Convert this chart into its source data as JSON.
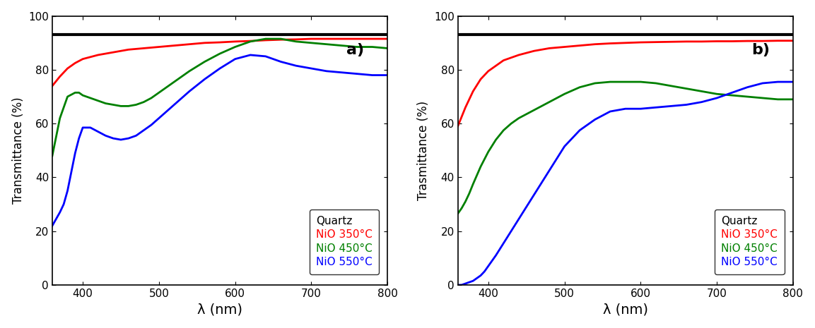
{
  "xlim": [
    360,
    800
  ],
  "ylim": [
    0,
    100
  ],
  "xticks": [
    400,
    500,
    600,
    700,
    800
  ],
  "yticks": [
    0,
    20,
    40,
    60,
    80,
    100
  ],
  "xlabel": "λ (nm)",
  "ylabel_a": "Transmittance (%)",
  "ylabel_b": "Trasmittance (%)",
  "label_a": "a)",
  "label_b": "b)",
  "quartz_level": 93.0,
  "legend_labels": [
    "Quartz",
    "NiO 350°C",
    "NiO 450°C",
    "NiO 550°C"
  ],
  "legend_colors": [
    "black",
    "red",
    "green",
    "blue"
  ],
  "panel_a": {
    "quartz": {
      "x": [
        360,
        800
      ],
      "y": [
        93.0,
        93.0
      ]
    },
    "red": {
      "x": [
        360,
        370,
        380,
        390,
        400,
        420,
        440,
        460,
        480,
        500,
        520,
        540,
        560,
        580,
        600,
        620,
        640,
        660,
        680,
        700,
        720,
        740,
        760,
        780,
        800
      ],
      "y": [
        74.0,
        77.5,
        80.5,
        82.5,
        84.0,
        85.5,
        86.5,
        87.5,
        88.0,
        88.5,
        89.0,
        89.5,
        90.0,
        90.2,
        90.5,
        90.7,
        91.0,
        91.2,
        91.3,
        91.5,
        91.5,
        91.5,
        91.5,
        91.5,
        91.5
      ]
    },
    "green": {
      "x": [
        360,
        370,
        380,
        390,
        395,
        400,
        410,
        420,
        430,
        440,
        450,
        460,
        470,
        480,
        490,
        500,
        520,
        540,
        560,
        580,
        600,
        620,
        640,
        660,
        680,
        700,
        720,
        740,
        760,
        780,
        800
      ],
      "y": [
        48.0,
        62.0,
        70.0,
        71.5,
        71.5,
        70.5,
        69.5,
        68.5,
        67.5,
        67.0,
        66.5,
        66.5,
        67.0,
        68.0,
        69.5,
        71.5,
        75.5,
        79.5,
        83.0,
        86.0,
        88.5,
        90.5,
        91.5,
        91.5,
        90.5,
        90.0,
        89.5,
        89.0,
        88.5,
        88.5,
        88.0
      ]
    },
    "blue": {
      "x": [
        360,
        365,
        370,
        375,
        380,
        385,
        390,
        395,
        400,
        410,
        420,
        430,
        440,
        450,
        460,
        470,
        480,
        490,
        500,
        520,
        540,
        560,
        580,
        600,
        620,
        640,
        660,
        680,
        700,
        720,
        740,
        760,
        780,
        800
      ],
      "y": [
        22.0,
        24.5,
        27.0,
        30.0,
        35.0,
        42.0,
        49.0,
        54.5,
        58.5,
        58.5,
        57.0,
        55.5,
        54.5,
        54.0,
        54.5,
        55.5,
        57.5,
        59.5,
        62.0,
        67.0,
        72.0,
        76.5,
        80.5,
        84.0,
        85.5,
        85.0,
        83.0,
        81.5,
        80.5,
        79.5,
        79.0,
        78.5,
        78.0,
        78.0
      ]
    }
  },
  "panel_b": {
    "quartz": {
      "x": [
        360,
        800
      ],
      "y": [
        93.0,
        93.0
      ]
    },
    "red": {
      "x": [
        360,
        370,
        380,
        390,
        400,
        420,
        440,
        460,
        480,
        500,
        520,
        540,
        560,
        580,
        600,
        620,
        640,
        660,
        680,
        700,
        720,
        740,
        760,
        780,
        800
      ],
      "y": [
        59.0,
        66.0,
        72.0,
        76.5,
        79.5,
        83.5,
        85.5,
        87.0,
        88.0,
        88.5,
        89.0,
        89.5,
        89.8,
        90.0,
        90.2,
        90.3,
        90.4,
        90.5,
        90.5,
        90.6,
        90.6,
        90.7,
        90.7,
        90.8,
        90.8
      ]
    },
    "green": {
      "x": [
        360,
        365,
        370,
        375,
        380,
        390,
        400,
        410,
        420,
        430,
        440,
        450,
        460,
        470,
        480,
        490,
        500,
        520,
        540,
        560,
        580,
        600,
        620,
        640,
        660,
        680,
        700,
        720,
        740,
        760,
        780,
        800
      ],
      "y": [
        26.5,
        28.5,
        31.0,
        34.0,
        37.5,
        44.0,
        49.5,
        54.0,
        57.5,
        60.0,
        62.0,
        63.5,
        65.0,
        66.5,
        68.0,
        69.5,
        71.0,
        73.5,
        75.0,
        75.5,
        75.5,
        75.5,
        75.0,
        74.0,
        73.0,
        72.0,
        71.0,
        70.5,
        70.0,
        69.5,
        69.0,
        69.0
      ]
    },
    "blue": {
      "x": [
        360,
        365,
        370,
        375,
        380,
        385,
        390,
        395,
        400,
        410,
        420,
        430,
        440,
        450,
        460,
        470,
        480,
        490,
        500,
        520,
        540,
        560,
        580,
        600,
        620,
        640,
        660,
        680,
        700,
        720,
        740,
        760,
        780,
        800
      ],
      "y": [
        0.0,
        0.0,
        0.5,
        1.0,
        1.5,
        2.5,
        3.5,
        5.0,
        7.0,
        11.0,
        15.5,
        20.0,
        24.5,
        29.0,
        33.5,
        38.0,
        42.5,
        47.0,
        51.5,
        57.5,
        61.5,
        64.5,
        65.5,
        65.5,
        66.0,
        66.5,
        67.0,
        68.0,
        69.5,
        71.5,
        73.5,
        75.0,
        75.5,
        75.5
      ]
    }
  }
}
